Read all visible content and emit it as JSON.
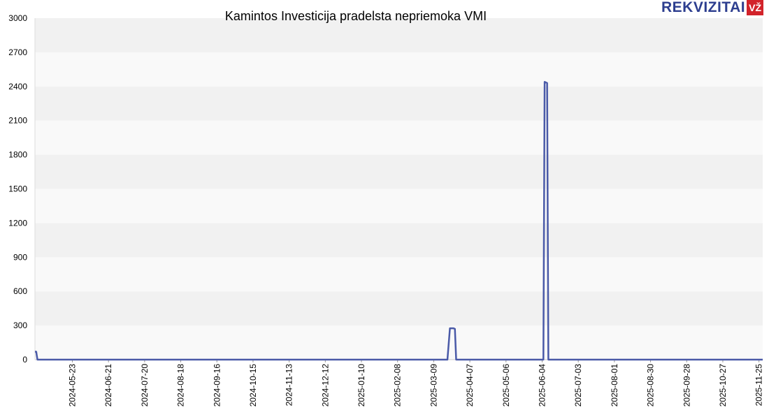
{
  "chart_data": {
    "type": "line",
    "title": "Kamintos Investicija pradelsta nepriemoka VMI",
    "xlabel": "",
    "ylabel": "",
    "ylim": [
      0,
      3000
    ],
    "yticks": [
      0,
      300,
      600,
      900,
      1200,
      1500,
      1800,
      2100,
      2400,
      2700,
      3000
    ],
    "xlim": [
      "2024-04-23",
      "2025-11-28"
    ],
    "xticks": [
      "2024-05-23",
      "2024-06-21",
      "2024-07-20",
      "2024-08-18",
      "2024-09-16",
      "2024-10-15",
      "2024-11-13",
      "2024-12-12",
      "2025-01-10",
      "2025-02-08",
      "2025-03-09",
      "2025-04-07",
      "2025-05-06",
      "2025-06-04",
      "2025-07-03",
      "2025-08-01",
      "2025-08-30",
      "2025-09-28",
      "2025-10-27",
      "2025-11-25"
    ],
    "grid": "horizontal bands",
    "line_color": "#4a5aa8",
    "series": [
      {
        "points": [
          [
            "2024-04-23",
            70
          ],
          [
            "2024-04-24",
            70
          ],
          [
            "2024-04-25",
            0
          ],
          [
            "2025-03-20",
            0
          ],
          [
            "2025-03-22",
            275
          ],
          [
            "2025-03-25",
            275
          ],
          [
            "2025-03-26",
            270
          ],
          [
            "2025-03-27",
            0
          ],
          [
            "2025-06-05",
            0
          ],
          [
            "2025-06-06",
            2440
          ],
          [
            "2025-06-08",
            2430
          ],
          [
            "2025-06-09",
            0
          ],
          [
            "2025-11-28",
            0
          ]
        ]
      }
    ]
  },
  "logo": {
    "text": "REKVIZITAI",
    "badge": "VŽ"
  }
}
